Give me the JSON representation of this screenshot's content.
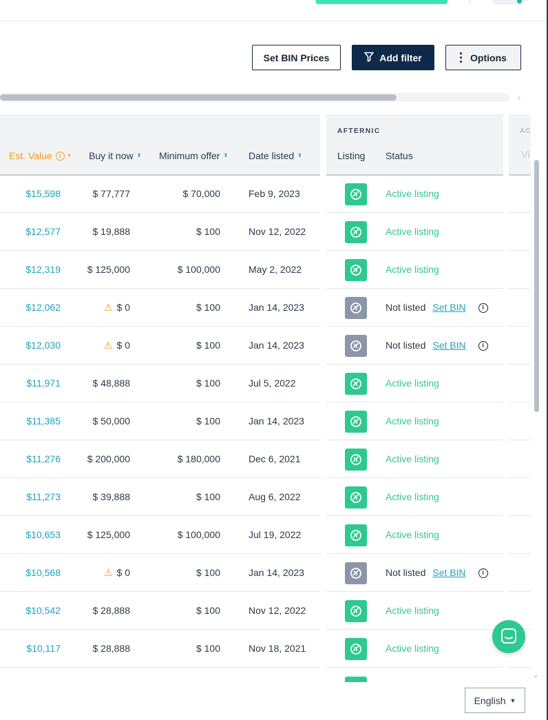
{
  "toolbar": {
    "set_bin_label": "Set BIN Prices",
    "add_filter_label": "Add filter",
    "options_label": "Options"
  },
  "table": {
    "group_label": "AFTERNIC",
    "next_group_label": "AC",
    "columns": {
      "est_value": "Est. Value",
      "buy_it_now": "Buy it now",
      "minimum_offer": "Minimum offer",
      "date_listed": "Date listed",
      "listing": "Listing",
      "status": "Status",
      "next": "Vi"
    },
    "rows": [
      {
        "est": "$15,598",
        "bin": "$ 77,777",
        "bin_warn": false,
        "min": "$ 70,000",
        "date": "Feb 9, 2023",
        "listed": true,
        "status": "Active listing"
      },
      {
        "est": "$12,577",
        "bin": "$ 19,888",
        "bin_warn": false,
        "min": "$ 100",
        "date": "Nov 12, 2022",
        "listed": true,
        "status": "Active listing"
      },
      {
        "est": "$12,319",
        "bin": "$ 125,000",
        "bin_warn": false,
        "min": "$ 100,000",
        "date": "May 2, 2022",
        "listed": true,
        "status": "Active listing"
      },
      {
        "est": "$12,062",
        "bin": "$ 0",
        "bin_warn": true,
        "min": "$ 100",
        "date": "Jan 14, 2023",
        "listed": false,
        "status": "Not listed",
        "action": "Set BIN"
      },
      {
        "est": "$12,030",
        "bin": "$ 0",
        "bin_warn": true,
        "min": "$ 100",
        "date": "Jan 14, 2023",
        "listed": false,
        "status": "Not listed",
        "action": "Set BIN"
      },
      {
        "est": "$11,971",
        "bin": "$ 48,888",
        "bin_warn": false,
        "min": "$ 100",
        "date": "Jul 5, 2022",
        "listed": true,
        "status": "Active listing"
      },
      {
        "est": "$11,385",
        "bin": "$ 50,000",
        "bin_warn": false,
        "min": "$ 100",
        "date": "Jan 14, 2023",
        "listed": true,
        "status": "Active listing"
      },
      {
        "est": "$11,276",
        "bin": "$ 200,000",
        "bin_warn": false,
        "min": "$ 180,000",
        "date": "Dec 6, 2021",
        "listed": true,
        "status": "Active listing"
      },
      {
        "est": "$11,273",
        "bin": "$ 39,888",
        "bin_warn": false,
        "min": "$ 100",
        "date": "Aug 6, 2022",
        "listed": true,
        "status": "Active listing"
      },
      {
        "est": "$10,653",
        "bin": "$ 125,000",
        "bin_warn": false,
        "min": "$ 100,000",
        "date": "Jul 19, 2022",
        "listed": true,
        "status": "Active listing"
      },
      {
        "est": "$10,568",
        "bin": "$ 0",
        "bin_warn": true,
        "min": "$ 100",
        "date": "Jan 14, 2023",
        "listed": false,
        "status": "Not listed",
        "action": "Set BIN"
      },
      {
        "est": "$10,542",
        "bin": "$ 28,888",
        "bin_warn": false,
        "min": "$ 100",
        "date": "Nov 12, 2022",
        "listed": true,
        "status": "Active listing"
      },
      {
        "est": "$10,117",
        "bin": "$ 28,888",
        "bin_warn": false,
        "min": "$ 100",
        "date": "Nov 18, 2021",
        "listed": true,
        "status": "Active listing"
      }
    ]
  },
  "footer": {
    "language": "English"
  },
  "icons": {
    "filter": "filter-icon",
    "options": "vertical-dots-icon",
    "listing": "afternic-logo-icon",
    "warning": "warning-icon",
    "info": "info-icon",
    "chat": "chat-icon"
  },
  "colors": {
    "accent_teal": "#1fa2c4",
    "active_green": "#2ec990",
    "warning_orange": "#f29a1f",
    "navy": "#0e2949"
  }
}
